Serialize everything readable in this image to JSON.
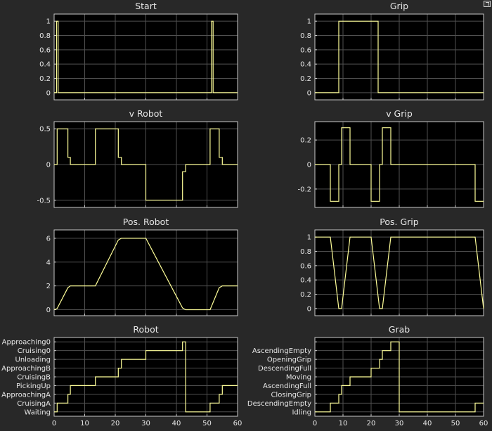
{
  "colors": {
    "background": "#282828",
    "axes_bg": "#000000",
    "axis_line": "#c8c8c8",
    "grid": "#505050",
    "text": "#e6e6e6",
    "series": "#ffff99"
  },
  "chart_data": [
    {
      "type": "line",
      "title": "Start",
      "xlim": [
        0,
        60
      ],
      "ylim": [
        -0.1,
        1.1
      ],
      "yticks": [
        0,
        0.2,
        0.4,
        0.6,
        0.8,
        1
      ],
      "yticklabels": [
        "0",
        "0.2",
        "0.4",
        "0.6",
        "0.8",
        "1"
      ],
      "xticks": [
        0,
        10,
        20,
        30,
        40,
        50,
        60
      ],
      "xticklabels": [],
      "grid": true,
      "step": true,
      "x": [
        0,
        0.8,
        0.8,
        1.3,
        1.3,
        51.5,
        51.5,
        52,
        52,
        60
      ],
      "y": [
        0,
        0,
        1,
        1,
        0,
        0,
        1,
        1,
        0,
        0
      ]
    },
    {
      "type": "line",
      "title": "Grip",
      "xlim": [
        0,
        60
      ],
      "ylim": [
        -0.1,
        1.1
      ],
      "yticks": [
        0,
        0.2,
        0.4,
        0.6,
        0.8,
        1
      ],
      "yticklabels": [
        "0",
        "0.2",
        "0.4",
        "0.6",
        "0.8",
        "1"
      ],
      "xticks": [
        0,
        10,
        20,
        30,
        40,
        50,
        60
      ],
      "xticklabels": [],
      "grid": true,
      "step": true,
      "x": [
        0,
        8.5,
        8.5,
        22.5,
        22.5,
        60
      ],
      "y": [
        0,
        0,
        1,
        1,
        0,
        0
      ]
    },
    {
      "type": "line",
      "title": "v Robot",
      "xlim": [
        0,
        60
      ],
      "ylim": [
        -0.6,
        0.6
      ],
      "yticks": [
        -0.5,
        0,
        0.5
      ],
      "yticklabels": [
        "-0.5",
        "0",
        "0.5"
      ],
      "xticks": [
        0,
        10,
        20,
        30,
        40,
        50,
        60
      ],
      "xticklabels": [],
      "grid": true,
      "step": true,
      "x": [
        0,
        1,
        1,
        4.5,
        4.5,
        5.3,
        5.3,
        13.5,
        13.5,
        21,
        21,
        22,
        22,
        30,
        30,
        42,
        42,
        43,
        43,
        51,
        51,
        54,
        54,
        55,
        55,
        60
      ],
      "y": [
        0,
        0,
        0.5,
        0.5,
        0.1,
        0.1,
        0,
        0,
        0.5,
        0.5,
        0.1,
        0.1,
        0,
        0,
        -0.5,
        -0.5,
        -0.1,
        -0.1,
        0,
        0,
        0.5,
        0.5,
        0.1,
        0.1,
        0,
        0
      ]
    },
    {
      "type": "line",
      "title": "v Grip",
      "xlim": [
        0,
        60
      ],
      "ylim": [
        -0.35,
        0.35
      ],
      "yticks": [
        -0.2,
        0,
        0.2
      ],
      "yticklabels": [
        "-0.2",
        "0",
        "0.2"
      ],
      "xticks": [
        0,
        10,
        20,
        30,
        40,
        50,
        60
      ],
      "xticklabels": [],
      "grid": true,
      "step": true,
      "x": [
        0,
        5.5,
        5.5,
        8.5,
        8.5,
        9.5,
        9.5,
        12.5,
        12.5,
        20,
        20,
        23,
        23,
        24,
        24,
        27,
        27,
        57,
        57,
        60
      ],
      "y": [
        0,
        0,
        -0.3,
        -0.3,
        0,
        0,
        0.3,
        0.3,
        0,
        0,
        -0.3,
        -0.3,
        0,
        0,
        0.3,
        0.3,
        0,
        0,
        -0.3,
        -0.3
      ]
    },
    {
      "type": "line",
      "title": "Pos. Robot",
      "xlim": [
        0,
        60
      ],
      "ylim": [
        -0.5,
        6.7
      ],
      "yticks": [
        0,
        2,
        4,
        6
      ],
      "yticklabels": [
        "0",
        "2",
        "4",
        "6"
      ],
      "xticks": [
        0,
        10,
        20,
        30,
        40,
        50,
        60
      ],
      "xticklabels": [],
      "grid": true,
      "step": false,
      "x": [
        0,
        1,
        4.5,
        5.3,
        13.5,
        21,
        22,
        30,
        42,
        43,
        51,
        54,
        55,
        60
      ],
      "y": [
        0,
        0.1,
        1.85,
        2,
        2,
        5.85,
        6,
        6,
        0.15,
        0,
        0,
        1.85,
        2,
        2
      ]
    },
    {
      "type": "line",
      "title": "Pos. Grip",
      "xlim": [
        0,
        60
      ],
      "ylim": [
        -0.1,
        1.1
      ],
      "yticks": [
        0,
        0.2,
        0.4,
        0.6,
        0.8,
        1
      ],
      "yticklabels": [
        "0",
        "0.2",
        "0.4",
        "0.6",
        "0.8",
        "1"
      ],
      "xticks": [
        0,
        10,
        20,
        30,
        40,
        50,
        60
      ],
      "xticklabels": [],
      "grid": true,
      "step": false,
      "x": [
        0,
        5.5,
        8.5,
        9.5,
        12.5,
        20,
        23,
        24,
        27,
        57,
        60
      ],
      "y": [
        1,
        1,
        0,
        0,
        1,
        1,
        0,
        0,
        1,
        1,
        0
      ]
    },
    {
      "type": "line",
      "title": "Robot",
      "xlim": [
        0,
        60
      ],
      "ylim": [
        -0.5,
        8.5
      ],
      "yticks": [
        0,
        1,
        2,
        3,
        4,
        5,
        6,
        7,
        8
      ],
      "yticklabels": [
        "Waiting",
        "CruisingA",
        "ApproachingA",
        "PickingUp",
        "CruisingB",
        "ApproachingB",
        "Unloading",
        "Cruising0",
        "Approaching0"
      ],
      "xticks": [
        0,
        10,
        20,
        30,
        40,
        50,
        60
      ],
      "xticklabels": [
        "0",
        "10",
        "20",
        "30",
        "40",
        "50",
        "60"
      ],
      "grid": true,
      "step": true,
      "x": [
        0,
        1,
        1,
        4.5,
        4.5,
        5.3,
        5.3,
        13.5,
        13.5,
        21,
        21,
        22,
        22,
        30,
        30,
        42,
        42,
        43,
        43,
        51,
        51,
        54,
        54,
        55,
        55,
        60
      ],
      "y": [
        0,
        0,
        1,
        1,
        2,
        2,
        3,
        3,
        4,
        4,
        5,
        5,
        6,
        6,
        7,
        7,
        8,
        8,
        0,
        0,
        1,
        1,
        2,
        2,
        3,
        3
      ]
    },
    {
      "type": "line",
      "title": "Grab",
      "xlim": [
        0,
        60
      ],
      "ylim": [
        -0.5,
        8.5
      ],
      "yticks": [
        0,
        1,
        2,
        3,
        4,
        5,
        6,
        7,
        8
      ],
      "yticklabels": [
        "Idling",
        "DescendingEmpty",
        "ClosingGrip",
        "AscendingFull",
        "Moving",
        "DescendingFull",
        "OpeningGrip",
        "AscendingEmpty",
        ""
      ],
      "xticks": [
        0,
        10,
        20,
        30,
        40,
        50,
        60
      ],
      "xticklabels": [
        "0",
        "10",
        "20",
        "30",
        "40",
        "50",
        "60"
      ],
      "grid": true,
      "step": true,
      "x": [
        0,
        5.5,
        5.5,
        8.5,
        8.5,
        9.5,
        9.5,
        12.5,
        12.5,
        20,
        20,
        23,
        23,
        24,
        24,
        27,
        27,
        30,
        30,
        57,
        57,
        60
      ],
      "y": [
        0,
        0,
        1,
        1,
        2,
        2,
        3,
        3,
        4,
        4,
        5,
        5,
        6,
        6,
        7,
        7,
        8,
        8,
        0,
        0,
        1,
        1
      ]
    }
  ]
}
